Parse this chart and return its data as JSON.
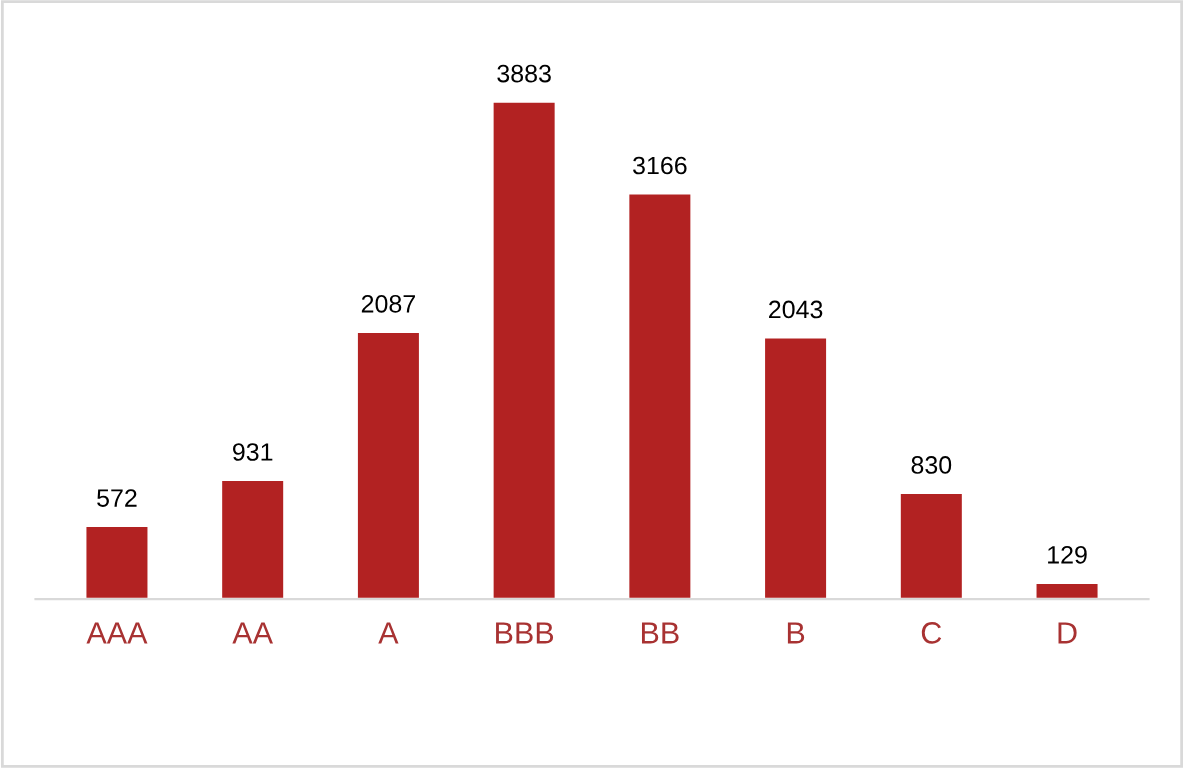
{
  "chart_data": {
    "type": "bar",
    "categories": [
      "AAA",
      "AA",
      "A",
      "BBB",
      "BB",
      "B",
      "C",
      "D"
    ],
    "values": [
      572,
      931,
      2087,
      3883,
      3166,
      2043,
      830,
      129
    ],
    "color": "#b22222",
    "data_labels": true
  }
}
